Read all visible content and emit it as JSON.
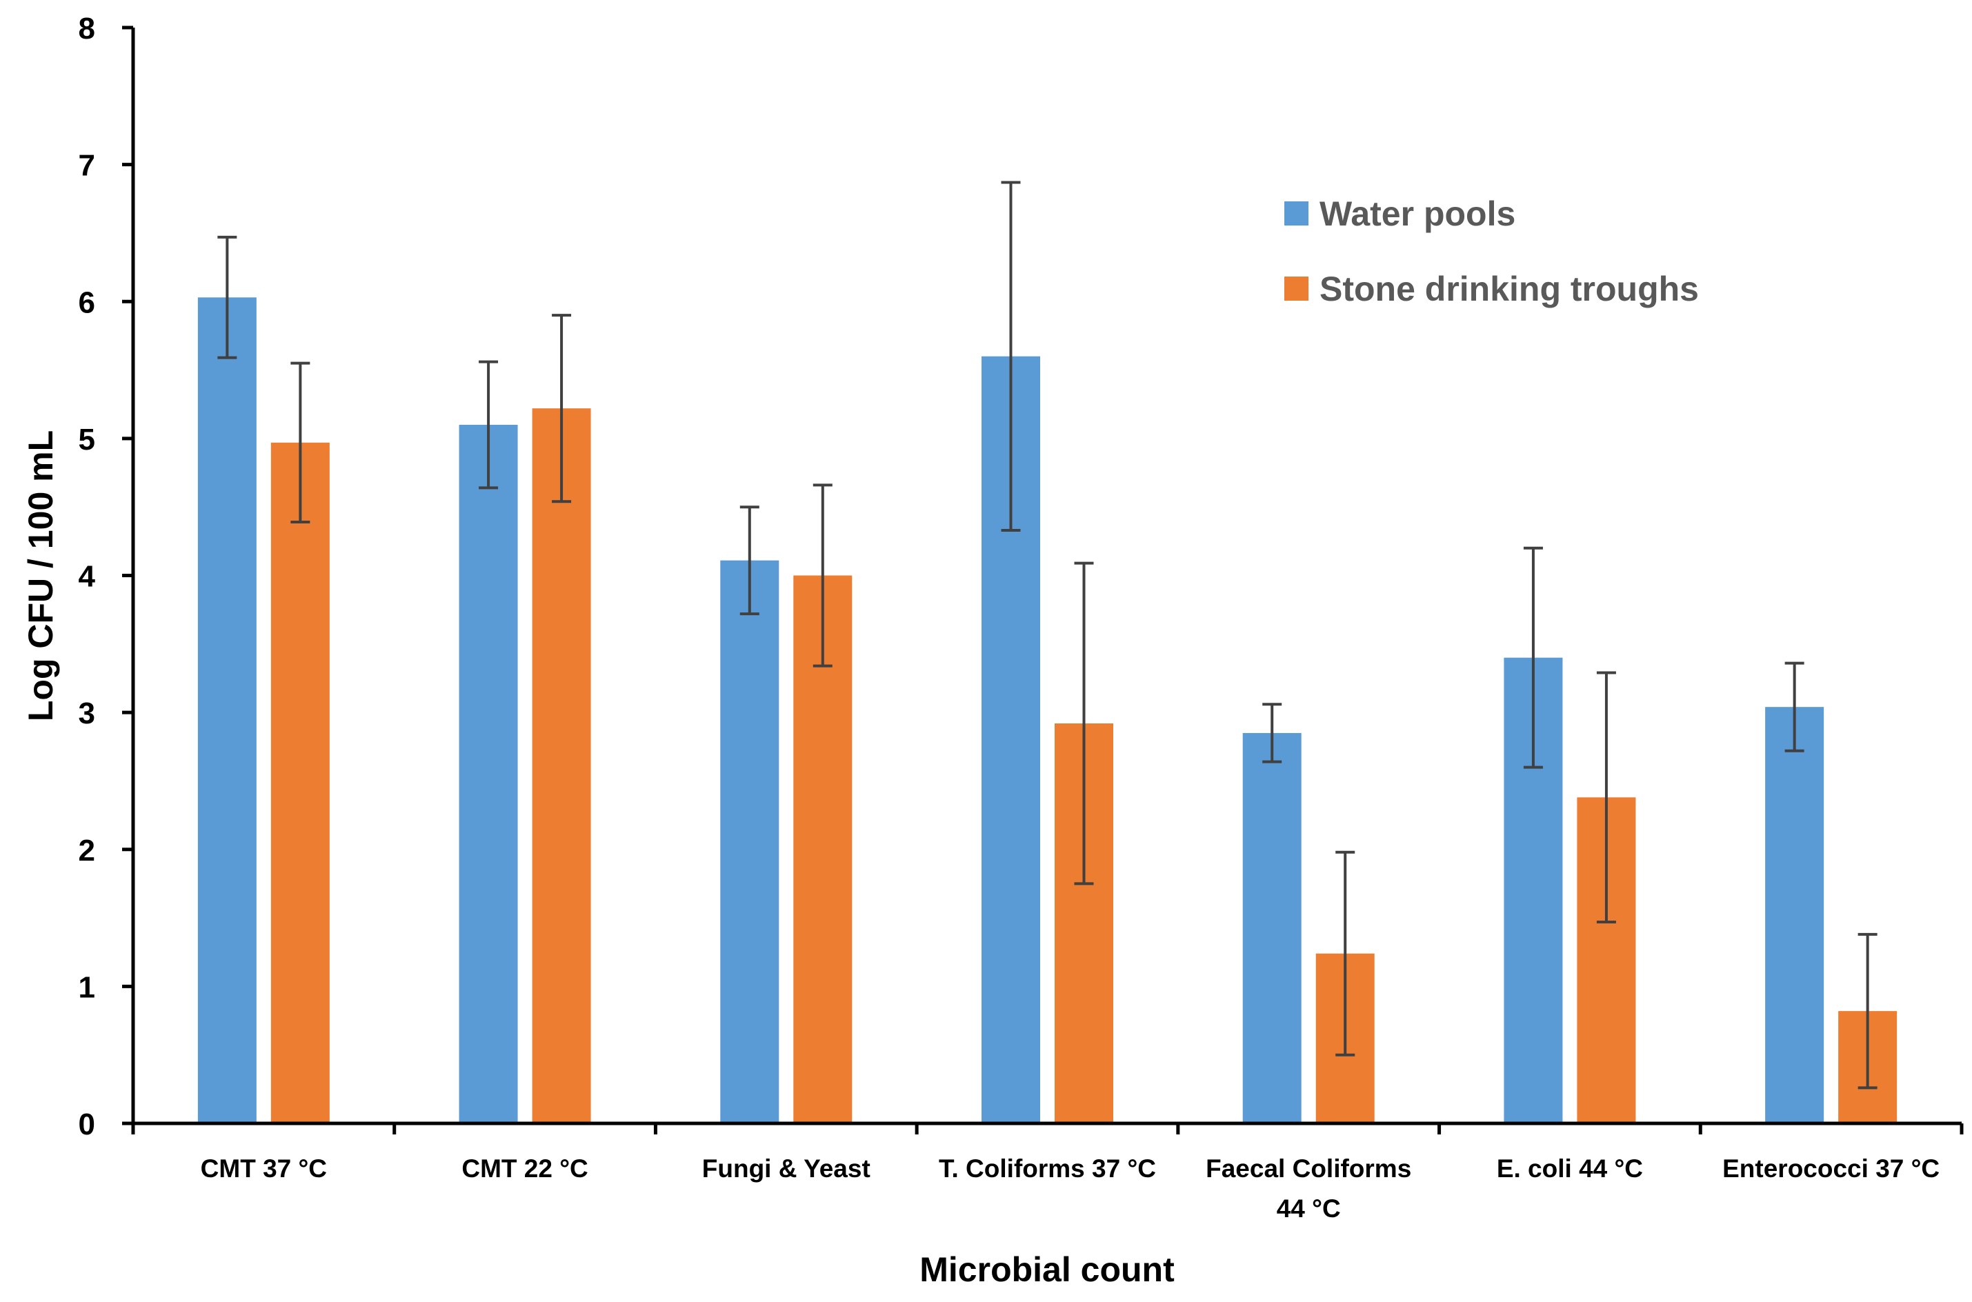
{
  "chart_data": {
    "type": "bar",
    "title": "",
    "xlabel": "Microbial count",
    "ylabel": "Log CFU / 100 mL",
    "ylim": [
      0,
      8
    ],
    "yticks": [
      0,
      1,
      2,
      3,
      4,
      5,
      6,
      7,
      8
    ],
    "grid": false,
    "legend_position": "top-right",
    "categories": [
      [
        "CMT 37 °C"
      ],
      [
        "CMT 22 °C"
      ],
      [
        "Fungi & Yeast"
      ],
      [
        "T. Coliforms 37 °C"
      ],
      [
        "Faecal Coliforms",
        "44 °C"
      ],
      [
        "E. coli 44 °C"
      ],
      [
        "Enterococci 37 °C"
      ]
    ],
    "series": [
      {
        "name": "Water pools",
        "color": "#5B9BD5",
        "values": [
          6.03,
          5.1,
          4.11,
          5.6,
          2.85,
          3.4,
          3.04
        ],
        "errors": [
          0.44,
          0.46,
          0.39,
          1.27,
          0.21,
          0.8,
          0.32
        ]
      },
      {
        "name": "Stone drinking troughs",
        "color": "#ED7D31",
        "values": [
          4.97,
          5.22,
          4.0,
          2.92,
          1.24,
          2.38,
          0.82
        ],
        "errors": [
          0.58,
          0.68,
          0.66,
          1.17,
          0.74,
          0.91,
          0.56
        ]
      }
    ]
  }
}
